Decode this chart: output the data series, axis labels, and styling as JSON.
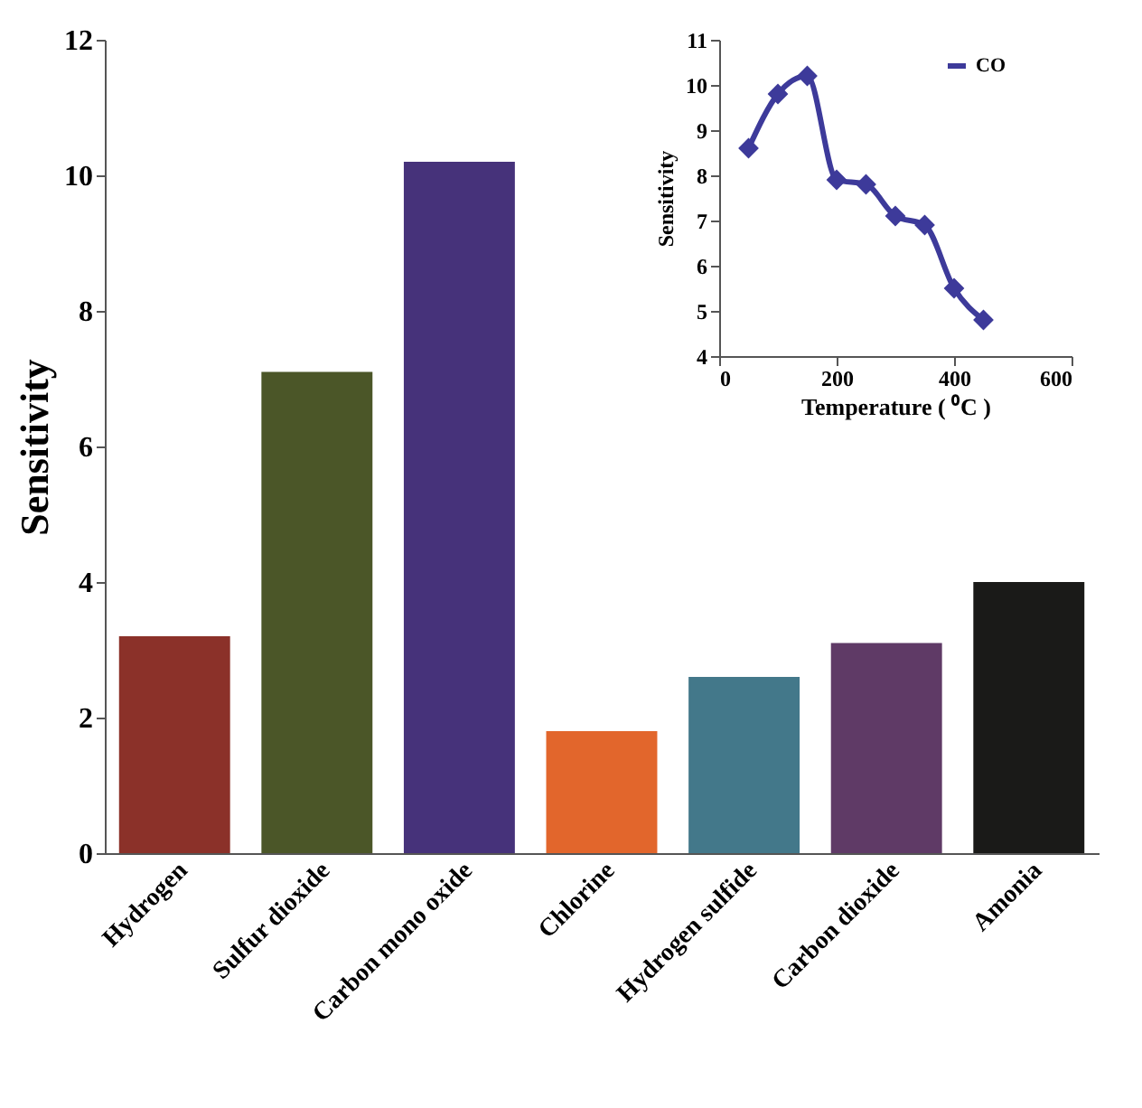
{
  "chart_data": [
    {
      "type": "bar",
      "ylabel": "Sensitivity",
      "categories": [
        "Hydrogen",
        "Sulfur dioxide",
        "Carbon mono oxide",
        "Chlorine",
        "Hydrogen sulfide",
        "Carbon dioxide",
        "Amonia"
      ],
      "values": [
        3.2,
        7.1,
        10.2,
        1.8,
        2.6,
        3.1,
        4.0
      ],
      "colors": [
        "#8b3129",
        "#4b5628",
        "#46327a",
        "#e2662c",
        "#43788a",
        "#5f3a66",
        "#1a1a18"
      ],
      "ylim": [
        0,
        12
      ],
      "yticks": [
        0,
        2,
        4,
        6,
        8,
        10,
        12
      ],
      "grid": false
    },
    {
      "type": "line",
      "xlabel": "Temperature ( ⁰C )",
      "ylabel": "Sensitivity",
      "x": [
        50,
        100,
        150,
        200,
        250,
        300,
        350,
        400,
        450
      ],
      "series": [
        {
          "name": "CO",
          "color": "#3d3a9a",
          "values": [
            8.6,
            9.8,
            10.2,
            7.9,
            7.8,
            7.1,
            6.9,
            5.5,
            4.8
          ]
        }
      ],
      "xlim": [
        0,
        600
      ],
      "xticks": [
        0,
        200,
        400,
        600
      ],
      "ylim": [
        4,
        11
      ],
      "yticks": [
        4,
        5,
        6,
        7,
        8,
        9,
        10,
        11
      ],
      "marker": "diamond",
      "line_style": "solid",
      "legend": "top right",
      "grid": false
    }
  ]
}
